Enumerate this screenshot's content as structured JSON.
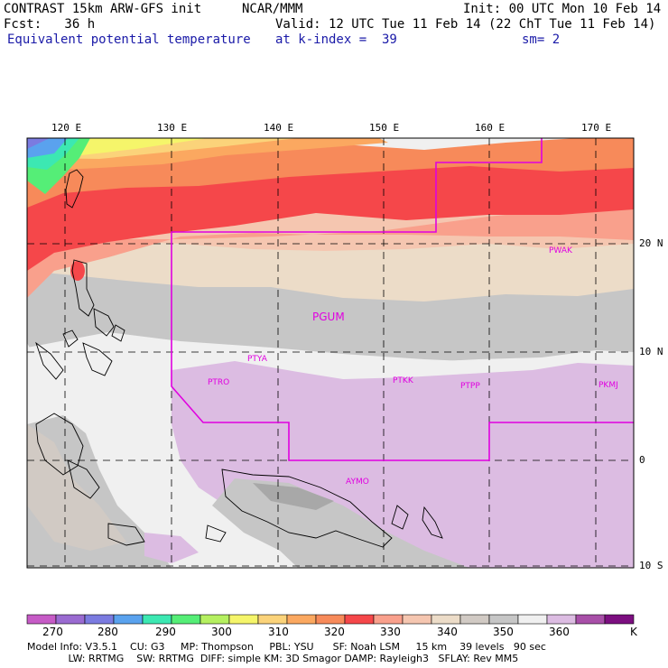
{
  "header": {
    "line1_left": "CONTRAST 15km ARW-GFS init",
    "line1_mid": "NCAR/MMM",
    "line1_right": "Init: 00 UTC Mon 10 Feb 14",
    "line2_left": "Fcst:   36 h",
    "line2_right": "Valid: 12 UTC Tue 11 Feb 14 (22 ChT Tue 11 Feb 14)",
    "line3_left": "Equivalent potential temperature",
    "line3_mid": "at k-index =  39",
    "line3_right": "sm= 2"
  },
  "axes": {
    "lon_labels": [
      "120 E",
      "130 E",
      "140 E",
      "150 E",
      "160 E",
      "170 E"
    ],
    "lat_labels": [
      "20 N",
      "10 N",
      "0",
      "10 S"
    ]
  },
  "stations": [
    "PWAK",
    "PGUM",
    "PTYA",
    "PTRO",
    "PTKK",
    "PTPP",
    "PKMJ",
    "AYMO"
  ],
  "colorbar": {
    "labels": [
      "270",
      "280",
      "290",
      "300",
      "310",
      "320",
      "330",
      "340",
      "350",
      "360",
      "K"
    ],
    "colors": [
      "#c65bc6",
      "#9a6bd1",
      "#7b7be0",
      "#5aa2ee",
      "#3ce8b2",
      "#55ee77",
      "#b5f060",
      "#f5f56a",
      "#fbd37a",
      "#fba860",
      "#f78a5a",
      "#f5474a",
      "#f9a08c",
      "#f5c6b0",
      "#ecdcc8",
      "#d1cac4",
      "#c6c6c6",
      "#f0f0f0",
      "#dcbce2",
      "#a84fa8",
      "#7c0f80"
    ]
  },
  "footer": {
    "line1": "Model Info: V3.5.1    CU: G3     MP: Thompson     PBL: YSU      SF: Noah LSM     15 km    39 levels   90 sec",
    "line2": "             LW: RRTMG    SW: RRTMG  DIFF: simple KM: 3D Smagor DAMP: Rayleigh3   SFLAY: Rev MM5"
  }
}
